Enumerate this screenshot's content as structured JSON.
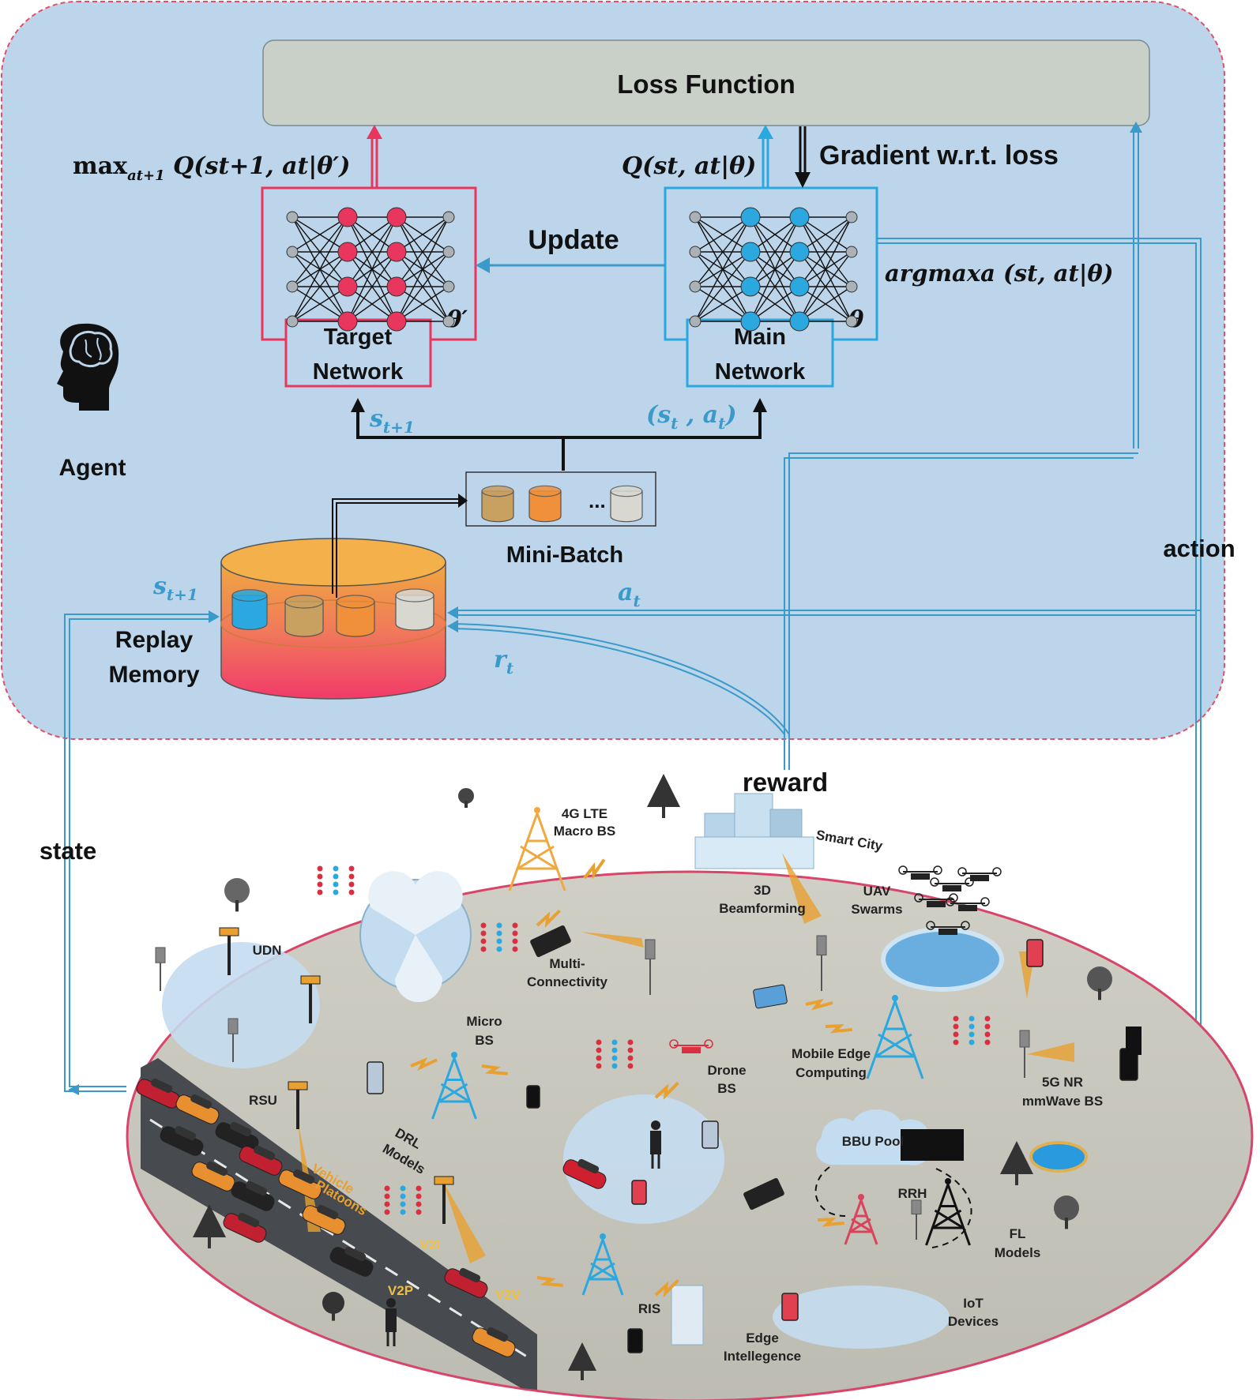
{
  "agent": {
    "loss_function": "Loss Function",
    "agent_label": "Agent",
    "update_label": "Update",
    "gradient_label": "Gradient w.r.t. loss",
    "target_network_line1": "Target",
    "target_network_line2": "Network",
    "target_theta": "θ′",
    "main_network_line1": "Main",
    "main_network_line2": "Network",
    "main_theta": "θ",
    "target_q_expr": "max",
    "target_q_sub": "at+1",
    "target_q_rest": " Q(st+1, at|θ′)",
    "main_q_expr": "Q(st, at|θ)",
    "argmax_expr": "argmaxa (st, at|θ)",
    "mini_batch": "Mini-Batch",
    "mini_batch_dots": "...",
    "replay_line1": "Replay",
    "replay_line2": "Memory",
    "s_next_top": "st+1",
    "s_a_pair": "(st , at)",
    "s_next_memory": "st+1",
    "a_t": "at",
    "r_t": "rt"
  },
  "loop": {
    "state": "state",
    "action": "action",
    "reward": "reward"
  },
  "environment": {
    "labels": [
      "4G LTE",
      "Macro BS",
      "Smart City",
      "3D",
      "Beamforming",
      "UAV",
      "Swarms",
      "UDN",
      "Multi-",
      "Connectivity",
      "Micro",
      "BS",
      "Mobile Edge",
      "Computing",
      "5G NR",
      "mmWave BS",
      "RSU",
      "Drone",
      "BS",
      "DRL",
      "Models",
      "Vehicle",
      "Platoons",
      "BBU Pool",
      "RRH",
      "FL",
      "Models",
      "V2I",
      "V2P",
      "V2V",
      "RIS",
      "IoT",
      "Devices",
      "Edge",
      "Intellegence"
    ]
  },
  "colors": {
    "agent_bg": "#bcd5ea",
    "agent_border": "#e0506a",
    "loss_bg": "#c8d0c8",
    "target_red": "#e8365e",
    "main_blue": "#2aa8df",
    "arrow_blue": "#3a9ac9",
    "ground": "#c9c8c0",
    "ellipse_border": "#d8456a"
  }
}
